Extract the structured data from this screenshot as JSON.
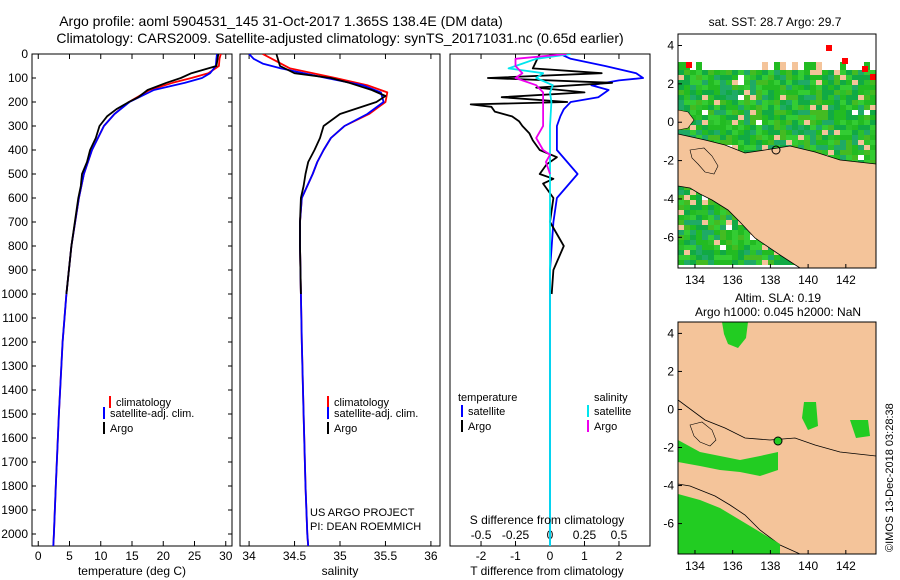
{
  "header": {
    "title_line1": "Argo profile: aoml 5904531_145 31-Oct-2017 1.365S 138.4E (DM data)",
    "title_line2": "Climatology: CARS2009. Satellite-adjusted climatology: synTS_20171031.nc (0.65d earlier)"
  },
  "colors": {
    "climatology": "#ff0000",
    "satellite": "#0000ff",
    "argo": "#000000",
    "s_satellite": "#00e5ee",
    "s_argo": "#ee00ee",
    "land": "#f4c49a",
    "sst_green": "#22bb22",
    "sla_green": "#22cc22"
  },
  "depth_axis": {
    "ticks": [
      "0",
      "100",
      "200",
      "300",
      "400",
      "500",
      "600",
      "700",
      "800",
      "900",
      "1000",
      "1100",
      "1200",
      "1300",
      "1400",
      "1500",
      "1600",
      "1700",
      "1800",
      "1900",
      "2000"
    ],
    "range": [
      0,
      2050
    ]
  },
  "credits": {
    "line1": "US ARGO PROJECT",
    "line2": "PI: DEAN ROEMMICH"
  },
  "chart_data": [
    {
      "type": "line",
      "id": "temperature",
      "xlabel": "temperature (deg C)",
      "xlim": [
        -1,
        31
      ],
      "xticks": [
        "0",
        "5",
        "10",
        "15",
        "20",
        "25",
        "30"
      ],
      "ylim": [
        2050,
        0
      ],
      "legend": [
        "climatology",
        "satellite-adj. clim.",
        "Argo"
      ],
      "series": [
        {
          "name": "climatology",
          "depth": [
            0,
            20,
            50,
            80,
            100,
            120,
            150,
            200,
            250,
            300,
            400,
            500,
            600,
            800,
            1000,
            1200,
            1500,
            1800,
            2000,
            2050
          ],
          "values": [
            29.2,
            29.0,
            28.9,
            27.2,
            24.5,
            21.5,
            17.8,
            14.5,
            12.2,
            10.5,
            8.6,
            7.3,
            6.5,
            5.3,
            4.5,
            3.9,
            3.3,
            2.8,
            2.5,
            2.4
          ]
        },
        {
          "name": "satellite-adj. clim.",
          "depth": [
            0,
            20,
            50,
            80,
            100,
            120,
            150,
            200,
            250,
            300,
            400,
            500,
            600,
            800,
            1000,
            1200,
            1500,
            1800,
            2000,
            2050
          ],
          "values": [
            28.6,
            28.5,
            28.4,
            27.5,
            26.2,
            23.5,
            18.5,
            14.6,
            12.2,
            10.5,
            8.6,
            7.3,
            6.5,
            5.3,
            4.5,
            3.9,
            3.3,
            2.8,
            2.5,
            2.4
          ]
        },
        {
          "name": "Argo",
          "depth": [
            0,
            20,
            50,
            80,
            100,
            120,
            150,
            180,
            200,
            230,
            260,
            300,
            350,
            400,
            450,
            500,
            550,
            600,
            800,
            1000
          ],
          "values": [
            28.8,
            28.7,
            28.5,
            24.5,
            22.8,
            20.5,
            17.5,
            16.0,
            14.5,
            12.5,
            11.0,
            9.8,
            9.2,
            8.3,
            7.8,
            7.0,
            6.8,
            6.4,
            5.3,
            4.5
          ]
        }
      ]
    },
    {
      "type": "line",
      "id": "salinity",
      "xlabel": "salinity",
      "xlim": [
        33.9,
        36.1
      ],
      "xticks": [
        "34",
        "34.5",
        "35",
        "35.5",
        "36"
      ],
      "ylim": [
        2050,
        0
      ],
      "legend": [
        "climatology",
        "satellite-adj. clim.",
        "Argo"
      ],
      "series": [
        {
          "name": "climatology",
          "depth": [
            0,
            30,
            60,
            100,
            130,
            160,
            200,
            250,
            300,
            350,
            400,
            450,
            500,
            600,
            700,
            800,
            1000,
            1200,
            1500,
            1800,
            2000,
            2050
          ],
          "values": [
            34.15,
            34.3,
            34.45,
            34.95,
            35.3,
            35.52,
            35.5,
            35.32,
            35.05,
            34.9,
            34.82,
            34.75,
            34.7,
            34.58,
            34.56,
            34.56,
            34.57,
            34.58,
            34.6,
            34.62,
            34.64,
            34.65
          ]
        },
        {
          "name": "satellite-adj. clim.",
          "depth": [
            0,
            20,
            40,
            60,
            100,
            130,
            160,
            200,
            250,
            300,
            350,
            400,
            450,
            500,
            600,
            700,
            800,
            1000,
            1200,
            1500,
            1800,
            2000,
            2050
          ],
          "values": [
            34.0,
            34.05,
            34.15,
            34.35,
            34.85,
            35.25,
            35.45,
            35.48,
            35.3,
            35.05,
            34.9,
            34.82,
            34.75,
            34.7,
            34.58,
            34.56,
            34.56,
            34.57,
            34.58,
            34.6,
            34.62,
            34.64,
            34.65
          ]
        },
        {
          "name": "Argo",
          "depth": [
            0,
            25,
            50,
            80,
            100,
            120,
            150,
            175,
            200,
            250,
            300,
            350,
            400,
            450,
            500,
            550,
            600,
            700,
            800,
            1000
          ],
          "values": [
            34.3,
            34.32,
            34.34,
            34.5,
            34.9,
            35.1,
            35.35,
            35.5,
            35.4,
            35.0,
            34.82,
            34.78,
            34.72,
            34.65,
            34.62,
            34.6,
            34.57,
            34.56,
            34.56,
            34.57
          ]
        }
      ]
    },
    {
      "type": "line",
      "id": "difference",
      "xlabel": "T difference from climatology",
      "xlabel_top": "S difference from climatology",
      "xlim": [
        -2.9,
        2.9
      ],
      "xticks": [
        "-2",
        "-1",
        "0",
        "1",
        "2"
      ],
      "s_xticks": [
        "-0.5",
        "-0.25",
        "0",
        "0.25",
        "0.5"
      ],
      "ylim": [
        2050,
        0
      ],
      "legend_left_title": "temperature",
      "legend_right_title": "salinity",
      "legend_left": [
        "satellite",
        "Argo"
      ],
      "legend_right": [
        "satellite",
        "Argo"
      ],
      "series": [
        {
          "name": "T satellite",
          "depth": [
            0,
            20,
            50,
            80,
            100,
            110,
            130,
            150,
            180,
            200,
            230,
            260,
            300,
            400,
            500,
            600,
            700,
            800,
            900,
            1000,
            1500,
            2050
          ],
          "values": [
            0.3,
            0.6,
            1.6,
            2.5,
            2.7,
            2.0,
            1.2,
            1.7,
            1.4,
            0.6,
            0.4,
            0.3,
            0.2,
            0.2,
            0.8,
            0.2,
            0.1,
            0.05,
            0.0,
            0.0,
            0.0,
            0.0
          ]
        },
        {
          "name": "T Argo",
          "depth": [
            0,
            30,
            60,
            80,
            100,
            120,
            140,
            160,
            180,
            200,
            210,
            220,
            240,
            260,
            280,
            300,
            330,
            360,
            400,
            430,
            460,
            500,
            520,
            540,
            600,
            700,
            800,
            900,
            1000
          ],
          "values": [
            -0.3,
            -0.4,
            -0.5,
            1.5,
            -1.8,
            1.8,
            -0.4,
            1.0,
            -1.4,
            0.5,
            -2.3,
            -1.7,
            -1.6,
            -1.1,
            -0.9,
            -0.8,
            -0.6,
            -0.5,
            -0.3,
            0.2,
            -0.1,
            -0.3,
            0.1,
            -0.2,
            0.1,
            0.0,
            0.4,
            0.1,
            0.05
          ]
        },
        {
          "name": "S satellite",
          "depth": [
            0,
            20,
            40,
            60,
            80,
            100,
            130,
            160,
            200,
            300,
            500,
            800,
            1000,
            1500,
            2050
          ],
          "values": [
            0.15,
            -0.1,
            -0.2,
            -0.3,
            -0.05,
            -0.1,
            0.02,
            0.0,
            0.01,
            0.0,
            0.0,
            0.0,
            0.0,
            0.0,
            0.0
          ]
        },
        {
          "name": "S Argo",
          "depth": [
            0,
            20,
            50,
            80,
            100,
            130,
            160,
            200,
            250,
            300,
            350,
            400,
            420,
            450,
            500
          ],
          "values": [
            0.12,
            -0.25,
            -0.25,
            -0.2,
            -0.25,
            -0.1,
            -0.05,
            -0.05,
            -0.05,
            -0.05,
            -0.1,
            -0.05,
            0.0,
            -0.03,
            0.0
          ]
        }
      ]
    },
    {
      "type": "heatmap",
      "id": "sst_map",
      "title": "sat. SST: 28.7 Argo: 29.7",
      "xticks": [
        "134",
        "136",
        "138",
        "140",
        "142"
      ],
      "yticks": [
        "4",
        "2",
        "0",
        "-2",
        "-4",
        "-6"
      ],
      "argo_position": [
        138.4,
        -1.365
      ]
    },
    {
      "type": "heatmap",
      "id": "sla_map",
      "title_line1": "Altim. SLA: 0.19",
      "title_line2": "Argo h1000: 0.045 h2000: NaN",
      "xticks": [
        "134",
        "136",
        "138",
        "140",
        "142"
      ],
      "yticks": [
        "4",
        "2",
        "0",
        "-2",
        "-4",
        "-6"
      ],
      "argo_position": [
        138.4,
        -1.365
      ]
    }
  ],
  "footer_stamp": "©IMOS 13-Dec-2018 03:28:38"
}
